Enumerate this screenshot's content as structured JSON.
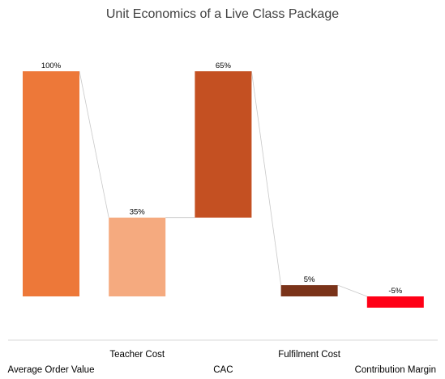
{
  "chart_data": {
    "type": "bar",
    "subtype": "waterfall",
    "title": "Unit Economics of a Live Class Package",
    "xlabel": "",
    "ylabel": "",
    "categories": [
      "Average Order Value",
      "Teacher Cost",
      "CAC",
      "Fulfilment Cost",
      "Contribution Margin"
    ],
    "values": [
      100,
      35,
      65,
      5,
      -5
    ],
    "data_labels": [
      "100%",
      "35%",
      "65%",
      "5%",
      "-5%"
    ],
    "bars": [
      {
        "category": "Average Order Value",
        "start": 0,
        "end": 100,
        "label": "100%",
        "color": "#ED7839"
      },
      {
        "category": "Teacher Cost",
        "start": 0,
        "end": 35,
        "label": "35%",
        "color": "#F5AA7F"
      },
      {
        "category": "CAC",
        "start": 35,
        "end": 100,
        "label": "65%",
        "color": "#C45022"
      },
      {
        "category": "Fulfilment Cost",
        "start": 0,
        "end": 5,
        "label": "5%",
        "color": "#7A3319"
      },
      {
        "category": "Contribution Margin",
        "start": -5,
        "end": 0,
        "label": "-5%",
        "color": "#FF0016"
      }
    ],
    "connectors": true,
    "ylim": [
      -5,
      100
    ],
    "grid": false,
    "legend": "none"
  }
}
